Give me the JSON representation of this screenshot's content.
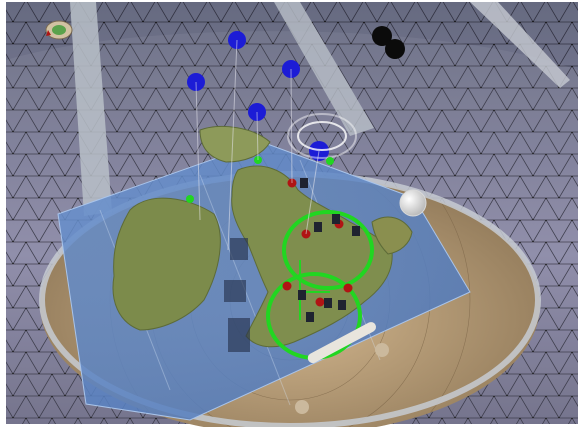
{
  "scene": {
    "description_visible_text": "",
    "palette": {
      "frame": "#ffffff",
      "sky_grid": "#8a88a6",
      "dome_floor": "#b59a73",
      "map_overlay": "#5b86c9",
      "land": "#7b8a4c",
      "blue_markers": "#1c1cd6",
      "black_markers": "#0b0b0b",
      "green_rings": "#21d621",
      "red_units": "#b01414",
      "dark_units": "#1f2330"
    },
    "markers": {
      "blue_count": 5,
      "black_count": 2,
      "green_ring_count": 2,
      "red_unit_count": 6,
      "dark_unit_count": 8
    },
    "icons": {
      "top_left_badge": "target-badge-icon",
      "light_orb": "orb-icon"
    }
  }
}
